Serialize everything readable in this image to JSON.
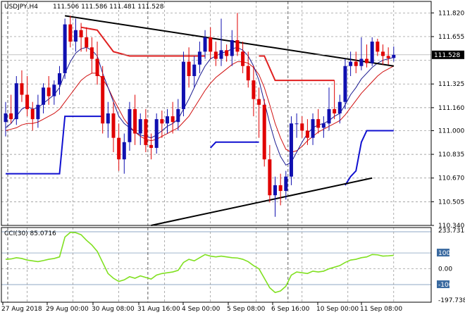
{
  "header": {
    "symbol": "USDJPY,H4",
    "ohlc": "111.506 111.586 111.481 111.528"
  },
  "price_badge": {
    "label": "111.528",
    "value": 111.528
  },
  "cci_header": {
    "label": "CCI(30) 85.0716"
  },
  "colors": {
    "bull": "#1010b0",
    "bear": "#e00000",
    "ma_fast": "#1a1a90",
    "ma_slow": "#d01010",
    "support": "#1010d0",
    "resistance": "#e02020",
    "trendline": "#000000",
    "cci": "#80e020",
    "grid": "#8a8a8a"
  },
  "chart_data": [
    {
      "type": "candlestick",
      "title": "USDJPY,H4",
      "ylim": [
        110.34,
        111.9
      ],
      "y_ticks": [
        "111.820",
        "111.655",
        "111.490",
        "111.325",
        "111.160",
        "111.000",
        "110.835",
        "110.670",
        "110.505",
        "110.340"
      ],
      "x_ticks": [
        "27 Aug 2018",
        "29 Aug 00:00",
        "30 Aug 08:00",
        "31 Aug 16:00",
        "4 Sep 00:00",
        "5 Sep 08:00",
        "6 Sep 16:00",
        "10 Sep 00:00",
        "11 Sep 08:00"
      ],
      "candles": [
        [
          111.06,
          111.2,
          110.96,
          111.12
        ],
        [
          111.12,
          111.25,
          111.05,
          111.08
        ],
        [
          111.08,
          111.38,
          111.04,
          111.33
        ],
        [
          111.33,
          111.42,
          111.2,
          111.25
        ],
        [
          111.25,
          111.38,
          111.1,
          111.15
        ],
        [
          111.15,
          111.2,
          111.0,
          111.08
        ],
        [
          111.08,
          111.25,
          111.02,
          111.18
        ],
        [
          111.18,
          111.33,
          111.12,
          111.3
        ],
        [
          111.3,
          111.38,
          111.18,
          111.24
        ],
        [
          111.24,
          111.35,
          111.18,
          111.32
        ],
        [
          111.32,
          111.45,
          111.25,
          111.4
        ],
        [
          111.4,
          111.78,
          111.36,
          111.74
        ],
        [
          111.74,
          111.8,
          111.58,
          111.62
        ],
        [
          111.62,
          111.78,
          111.55,
          111.7
        ],
        [
          111.7,
          111.75,
          111.55,
          111.65
        ],
        [
          111.65,
          111.72,
          111.55,
          111.58
        ],
        [
          111.58,
          111.65,
          111.4,
          111.5
        ],
        [
          111.5,
          111.62,
          111.32,
          111.38
        ],
        [
          111.38,
          111.45,
          110.98,
          111.05
        ],
        [
          111.05,
          111.2,
          110.95,
          111.12
        ],
        [
          111.12,
          111.2,
          110.85,
          110.95
        ],
        [
          110.95,
          111.05,
          110.72,
          110.8
        ],
        [
          110.8,
          110.98,
          110.7,
          110.92
        ],
        [
          110.92,
          111.2,
          110.86,
          111.15
        ],
        [
          111.15,
          111.25,
          110.9,
          110.98
        ],
        [
          110.98,
          111.12,
          110.9,
          111.08
        ],
        [
          111.08,
          111.15,
          110.85,
          110.9
        ],
        [
          110.9,
          110.98,
          110.8,
          110.88
        ],
        [
          110.88,
          111.12,
          110.84,
          111.08
        ],
        [
          111.08,
          111.14,
          110.95,
          111.05
        ],
        [
          111.05,
          111.15,
          110.98,
          111.1
        ],
        [
          111.1,
          111.2,
          110.98,
          111.06
        ],
        [
          111.06,
          111.22,
          111.0,
          111.15
        ],
        [
          111.15,
          111.55,
          111.1,
          111.48
        ],
        [
          111.48,
          111.58,
          111.3,
          111.38
        ],
        [
          111.38,
          111.52,
          111.3,
          111.46
        ],
        [
          111.46,
          111.62,
          111.4,
          111.55
        ],
        [
          111.55,
          111.7,
          111.5,
          111.65
        ],
        [
          111.65,
          111.72,
          111.5,
          111.55
        ],
        [
          111.55,
          111.62,
          111.45,
          111.5
        ],
        [
          111.5,
          111.78,
          111.45,
          111.56
        ],
        [
          111.56,
          111.6,
          111.48,
          111.52
        ],
        [
          111.52,
          111.7,
          111.45,
          111.63
        ],
        [
          111.63,
          111.82,
          111.52,
          111.55
        ],
        [
          111.55,
          111.62,
          111.4,
          111.45
        ],
        [
          111.45,
          111.55,
          111.3,
          111.35
        ],
        [
          111.35,
          111.45,
          111.1,
          111.22
        ],
        [
          111.22,
          111.3,
          110.95,
          111.18
        ],
        [
          111.18,
          111.22,
          110.75,
          110.8
        ],
        [
          110.8,
          110.9,
          110.5,
          110.55
        ],
        [
          110.55,
          110.68,
          110.4,
          110.62
        ],
        [
          110.62,
          110.7,
          110.48,
          110.58
        ],
        [
          110.58,
          110.72,
          110.52,
          110.68
        ],
        [
          110.68,
          111.1,
          110.62,
          111.05
        ],
        [
          111.05,
          111.12,
          110.95,
          111.05
        ],
        [
          111.05,
          111.1,
          110.95,
          111.0
        ],
        [
          111.0,
          111.08,
          110.9,
          110.95
        ],
        [
          110.95,
          111.12,
          110.9,
          111.08
        ],
        [
          111.08,
          111.15,
          110.98,
          111.02
        ],
        [
          111.02,
          111.1,
          110.95,
          111.05
        ],
        [
          111.05,
          111.3,
          111.0,
          111.15
        ],
        [
          111.15,
          111.35,
          111.08,
          111.12
        ],
        [
          111.12,
          111.25,
          111.05,
          111.2
        ],
        [
          111.2,
          111.5,
          111.15,
          111.45
        ],
        [
          111.45,
          111.55,
          111.38,
          111.48
        ],
        [
          111.48,
          111.55,
          111.4,
          111.45
        ],
        [
          111.45,
          111.65,
          111.42,
          111.5
        ],
        [
          111.5,
          111.6,
          111.44,
          111.47
        ],
        [
          111.47,
          111.65,
          111.45,
          111.62
        ],
        [
          111.62,
          111.64,
          111.52,
          111.55
        ],
        [
          111.55,
          111.6,
          111.46,
          111.52
        ],
        [
          111.52,
          111.58,
          111.46,
          111.505
        ],
        [
          111.506,
          111.586,
          111.481,
          111.528
        ]
      ],
      "ma_fast": [
        111.02,
        111.05,
        111.1,
        111.15,
        111.17,
        111.15,
        111.16,
        111.19,
        111.22,
        111.25,
        111.3,
        111.4,
        111.48,
        111.54,
        111.57,
        111.58,
        111.56,
        111.52,
        111.4,
        111.3,
        111.2,
        111.1,
        111.05,
        111.02,
        110.99,
        110.97,
        110.96,
        110.95,
        110.97,
        111.0,
        111.03,
        111.05,
        111.08,
        111.15,
        111.22,
        111.3,
        111.38,
        111.45,
        111.5,
        111.52,
        111.54,
        111.55,
        111.57,
        111.58,
        111.56,
        111.52,
        111.45,
        111.35,
        111.2,
        111.05,
        110.92,
        110.82,
        110.76,
        110.78,
        110.85,
        110.92,
        110.98,
        111.02,
        111.04,
        111.05,
        111.07,
        111.1,
        111.12,
        111.18,
        111.25,
        111.3,
        111.36,
        111.4,
        111.44,
        111.47,
        111.49,
        111.5,
        111.51
      ],
      "ma_slow": [
        111.0,
        111.01,
        111.02,
        111.04,
        111.05,
        111.05,
        111.06,
        111.08,
        111.1,
        111.12,
        111.15,
        111.2,
        111.25,
        111.3,
        111.35,
        111.38,
        111.4,
        111.4,
        111.36,
        111.3,
        111.22,
        111.15,
        111.08,
        111.03,
        110.99,
        110.96,
        110.94,
        110.93,
        110.94,
        110.96,
        110.98,
        111.0,
        111.02,
        111.06,
        111.1,
        111.16,
        111.22,
        111.28,
        111.33,
        111.37,
        111.4,
        111.43,
        111.46,
        111.48,
        111.48,
        111.47,
        111.44,
        111.39,
        111.3,
        111.18,
        111.05,
        110.95,
        110.87,
        110.85,
        110.86,
        110.89,
        110.93,
        110.96,
        110.99,
        111.01,
        111.03,
        111.05,
        111.07,
        111.11,
        111.16,
        111.21,
        111.26,
        111.3,
        111.34,
        111.38,
        111.41,
        111.43,
        111.45
      ],
      "support_segments": [
        [
          [
            0,
            110.7
          ],
          [
            10,
            110.7
          ],
          [
            11,
            111.1
          ],
          [
            18,
            111.1
          ]
        ],
        [
          [
            38,
            110.88
          ],
          [
            39,
            110.92
          ],
          [
            47,
            110.92
          ]
        ],
        [
          [
            63,
            110.62
          ],
          [
            64,
            110.68
          ],
          [
            65,
            110.72
          ],
          [
            66,
            110.92
          ],
          [
            67,
            111.0
          ],
          [
            72,
            111.0
          ]
        ]
      ],
      "resistance_segments": [
        [
          [
            14,
            111.72
          ],
          [
            17,
            111.7
          ],
          [
            20,
            111.55
          ],
          [
            23,
            111.52
          ],
          [
            37,
            111.52
          ]
        ],
        [
          [
            47,
            111.52
          ],
          [
            48,
            111.52
          ],
          [
            50,
            111.35
          ],
          [
            61,
            111.35
          ]
        ]
      ],
      "trendlines": [
        {
          "from": [
            11,
            111.8
          ],
          "to": [
            72,
            111.45
          ]
        },
        {
          "from": [
            27,
            110.34
          ],
          "to": [
            68,
            110.67
          ]
        }
      ],
      "vertical_gridlines": [
        0,
        26,
        52
      ]
    },
    {
      "type": "line",
      "title": "CCI(30) 85.0716",
      "ylim": [
        -197.7389,
        233.7318
      ],
      "y_ticks": [
        "233.7318",
        "100",
        "0.00",
        "-100",
        "-197.7389"
      ],
      "levels": [
        100,
        -100
      ],
      "values": [
        60,
        62,
        70,
        65,
        55,
        50,
        45,
        52,
        60,
        65,
        75,
        200,
        230,
        228,
        215,
        180,
        150,
        110,
        40,
        -30,
        -60,
        -80,
        -70,
        -50,
        -60,
        -45,
        -55,
        -65,
        -40,
        -30,
        -25,
        -20,
        -10,
        40,
        60,
        50,
        70,
        90,
        80,
        75,
        80,
        75,
        70,
        68,
        60,
        45,
        20,
        0,
        -60,
        -120,
        -150,
        -140,
        -110,
        -40,
        -20,
        -25,
        -30,
        -15,
        -20,
        -15,
        0,
        10,
        20,
        40,
        55,
        60,
        70,
        75,
        90,
        88,
        80,
        82,
        85.0716
      ]
    }
  ]
}
